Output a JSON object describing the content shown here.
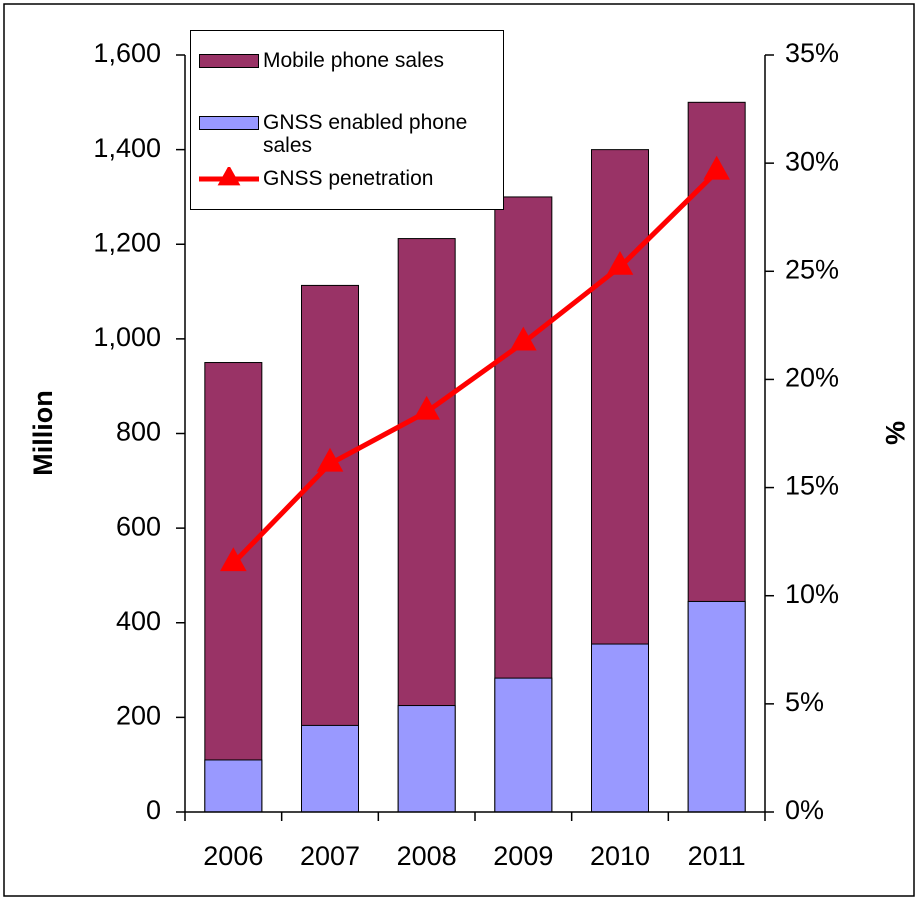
{
  "chart_data": {
    "type": "bar",
    "categories": [
      "2006",
      "2007",
      "2008",
      "2009",
      "2010",
      "2011"
    ],
    "series": [
      {
        "name": "Mobile phone sales",
        "color": "#993366",
        "values": [
          950,
          1113,
          1212,
          1300,
          1400,
          1500
        ]
      },
      {
        "name": "GNSS enabled phone sales",
        "color": "#9999ff",
        "values": [
          110,
          183,
          225,
          283,
          355,
          445
        ]
      },
      {
        "name": "GNSS penetration",
        "color": "#ff0000",
        "type": "line",
        "axis": "y2",
        "values": [
          11.5,
          16.1,
          18.5,
          21.7,
          25.2,
          29.6
        ]
      }
    ],
    "ylabel": "Million",
    "y2label": "%",
    "ylim": [
      0,
      1600
    ],
    "yticks": [
      0,
      200,
      400,
      600,
      800,
      {
        "value": 1000,
        "label": "1,000"
      },
      {
        "value": 1200,
        "label": "1,200"
      },
      {
        "value": 1400,
        "label": "1,400"
      },
      {
        "value": 1600,
        "label": "1,600"
      }
    ],
    "y2lim": [
      0,
      35
    ],
    "y2ticks": [
      {
        "value": 0,
        "label": "0%"
      },
      {
        "value": 5,
        "label": "5%"
      },
      {
        "value": 10,
        "label": "10%"
      },
      {
        "value": 15,
        "label": "15%"
      },
      {
        "value": 20,
        "label": "20%"
      },
      {
        "value": 25,
        "label": "25%"
      },
      {
        "value": 30,
        "label": "30%"
      },
      {
        "value": 35,
        "label": "35%"
      }
    ],
    "legend": "upper left"
  }
}
